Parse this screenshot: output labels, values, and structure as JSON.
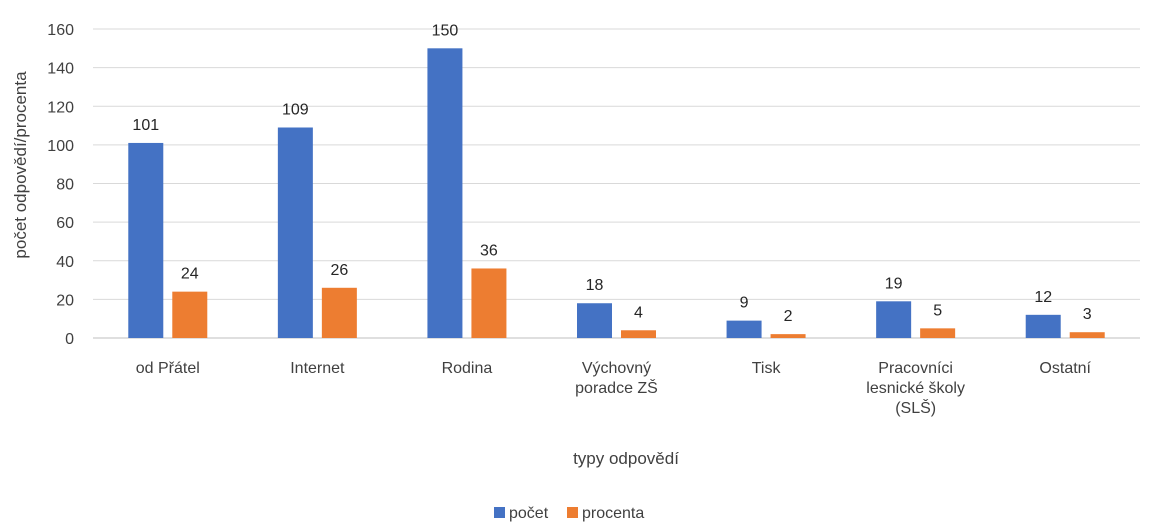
{
  "chart_data": {
    "type": "bar",
    "categories": [
      [
        "od Přátel"
      ],
      [
        "Internet"
      ],
      [
        "Rodina"
      ],
      [
        "Výchovný",
        "poradce ZŠ"
      ],
      [
        "Tisk"
      ],
      [
        "Pracovníci",
        "lesnické školy",
        "(SLŠ)"
      ],
      [
        "Ostatní"
      ]
    ],
    "series": [
      {
        "name": "počet",
        "color": "#4472C4",
        "values": [
          101,
          109,
          150,
          18,
          9,
          19,
          12
        ]
      },
      {
        "name": "procenta",
        "color": "#ED7D31",
        "values": [
          24,
          26,
          36,
          4,
          2,
          5,
          3
        ]
      }
    ],
    "xlabel": "typy odpovědí",
    "ylabel": "počet odpovědí/procenta",
    "ylim": [
      0,
      160
    ],
    "yticks": [
      0,
      20,
      40,
      60,
      80,
      100,
      120,
      140,
      160
    ],
    "grid": true,
    "legend_position": "bottom",
    "gridline_color": "#D9D9D9"
  }
}
